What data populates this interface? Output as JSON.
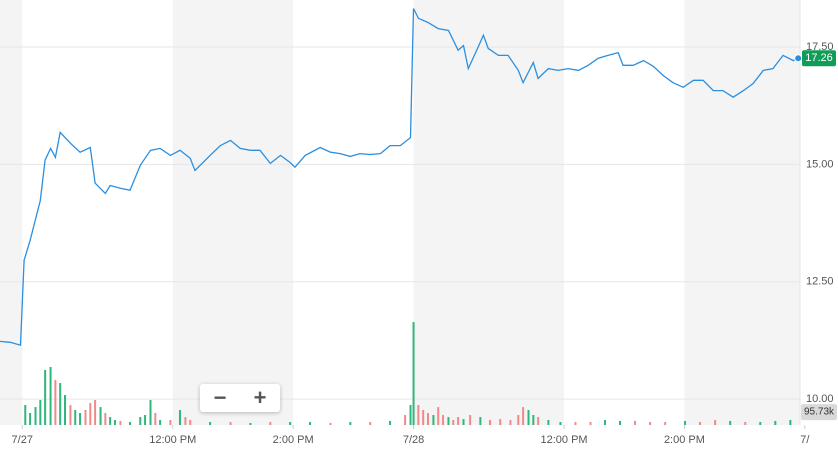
{
  "chart_data": {
    "type": "line",
    "color": "#2b8fe0",
    "x": [
      -0.37,
      -0.2,
      -0.03,
      0.03,
      0.13,
      0.3,
      0.38,
      0.47,
      0.55,
      0.63,
      0.8,
      0.96,
      1.13,
      1.21,
      1.38,
      1.46,
      1.63,
      1.79,
      1.96,
      2.13,
      2.29,
      2.46,
      2.62,
      2.79,
      2.87,
      3.12,
      3.29,
      3.46,
      3.62,
      3.79,
      3.95,
      4.12,
      4.29,
      4.45,
      4.53,
      4.7,
      4.95,
      5.12,
      5.28,
      5.45,
      5.61,
      5.78,
      5.95,
      6.11,
      6.28,
      6.45,
      6.5,
      6.58,
      6.74,
      6.91,
      7.08,
      7.24,
      7.33,
      7.41,
      7.57,
      7.66,
      7.74,
      7.91,
      8.07,
      8.24,
      8.32,
      8.49,
      8.57,
      8.74,
      8.9,
      9.07,
      9.24,
      9.4,
      9.57,
      9.73,
      9.9,
      9.98,
      10.15,
      10.32,
      10.48,
      10.65,
      10.81,
      10.98,
      11.15,
      11.31,
      11.48,
      11.64,
      11.81,
      11.98,
      12.14,
      12.31,
      12.47,
      12.64,
      12.81,
      12.89
    ],
    "values": [
      11.23,
      11.21,
      11.15,
      12.96,
      13.38,
      14.23,
      15.09,
      15.34,
      15.15,
      15.68,
      15.45,
      15.26,
      15.36,
      14.6,
      14.38,
      14.55,
      14.49,
      14.45,
      14.98,
      15.3,
      15.34,
      15.19,
      15.3,
      15.13,
      14.87,
      15.19,
      15.4,
      15.51,
      15.34,
      15.3,
      15.3,
      15.02,
      15.19,
      15.04,
      14.94,
      15.19,
      15.36,
      15.26,
      15.23,
      15.17,
      15.23,
      15.21,
      15.23,
      15.4,
      15.4,
      15.57,
      18.32,
      18.11,
      18.02,
      17.89,
      17.85,
      17.43,
      17.53,
      17.04,
      17.49,
      17.75,
      17.47,
      17.32,
      17.32,
      17,
      16.74,
      17.17,
      16.83,
      17.04,
      17,
      17.04,
      17,
      17.11,
      17.26,
      17.32,
      17.38,
      17.11,
      17.11,
      17.21,
      17.09,
      16.89,
      16.74,
      16.64,
      16.79,
      16.79,
      16.57,
      16.57,
      16.43,
      16.57,
      16.72,
      17,
      17.04,
      17.32,
      17.21,
      17.26
    ],
    "last_value": 17.26,
    "last_color": "#0f9d58",
    "xlim": [
      -0.37,
      12.92
    ],
    "xticks": [
      {
        "value": 0,
        "label": "7/27"
      },
      {
        "value": 2.5,
        "label": "12:00 PM"
      },
      {
        "value": 4.5,
        "label": "2:00 PM"
      },
      {
        "value": 6.5,
        "label": "7/28"
      },
      {
        "value": 9,
        "label": "12:00 PM"
      },
      {
        "value": 11,
        "label": "2:00 PM"
      },
      {
        "value": 13,
        "label": "7/"
      }
    ],
    "ylim": [
      9.45,
      18.5
    ],
    "yticks": [
      {
        "value": 10,
        "label": "10.00"
      },
      {
        "value": 12.5,
        "label": "12.50"
      },
      {
        "value": 15,
        "label": "15.00"
      },
      {
        "value": 17.5,
        "label": "17.50"
      }
    ],
    "grid": true,
    "volume": {
      "y2lim": [
        0,
        3150
      ],
      "last": {
        "value": 95.73,
        "label": "95.73k"
      },
      "up": {
        "color": "#2fb67c",
        "x": [
          0.05,
          0.13,
          0.22,
          0.3,
          0.38,
          0.47,
          0.63,
          0.71,
          0.88,
          0.96,
          1.3,
          1.46,
          1.54,
          1.79,
          1.96,
          2.04,
          2.13,
          2.29,
          2.62,
          3.12,
          3.79,
          4.45,
          4.78,
          5.45,
          6.11,
          6.45,
          6.5,
          6.83,
          7.08,
          7.33,
          7.61,
          8.41,
          8.49,
          8.74,
          8.94,
          9.68,
          9.93,
          11.01,
          11.76,
          12.26,
          12.51,
          12.76
        ],
        "values": [
          148,
          89,
          133,
          185,
          408,
          430,
          311,
          222,
          111,
          89,
          133,
          59,
          37,
          22,
          59,
          74,
          185,
          37,
          111,
          22,
          15,
          22,
          22,
          22,
          30,
          148,
          763,
          74,
          59,
          44,
          59,
          111,
          74,
          37,
          22,
          37,
          30,
          30,
          30,
          22,
          30,
          37
        ]
      },
      "down": {
        "color": "#ef8a8a",
        "x": [
          0.55,
          0.8,
          1.05,
          1.13,
          1.21,
          1.38,
          1.63,
          2.21,
          2.46,
          2.71,
          2.79,
          3.46,
          4.12,
          5.12,
          5.78,
          6.36,
          6.58,
          6.66,
          6.74,
          6.91,
          6.99,
          7.16,
          7.24,
          7.44,
          7.77,
          7.94,
          8.11,
          8.24,
          8.32,
          8.57,
          9.19,
          9.44,
          10.18,
          10.43,
          10.68,
          11.26,
          11.51,
          12.01
        ],
        "values": [
          333,
          148,
          111,
          163,
          185,
          89,
          30,
          89,
          37,
          59,
          37,
          22,
          22,
          15,
          22,
          74,
          148,
          111,
          89,
          133,
          74,
          37,
          59,
          74,
          37,
          44,
          37,
          74,
          133,
          59,
          22,
          22,
          30,
          22,
          22,
          22,
          37,
          22
        ]
      }
    },
    "controls": {
      "zoom_out": "−",
      "zoom_in": "+"
    }
  }
}
